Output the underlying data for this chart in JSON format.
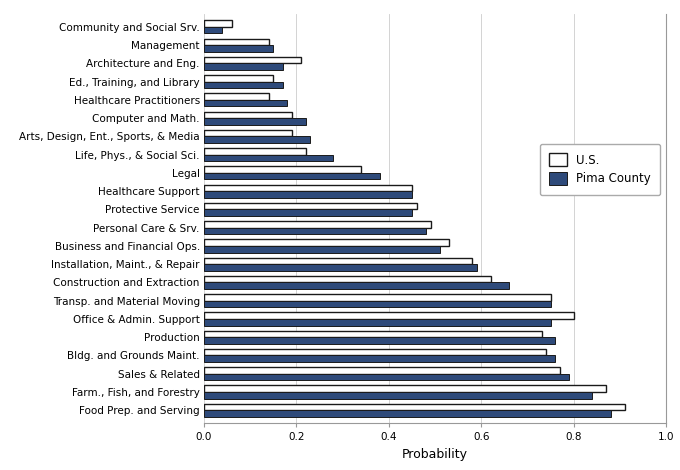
{
  "categories": [
    "Food Prep. and Serving",
    "Farm., Fish, and Forestry",
    "Sales & Related",
    "Bldg. and Grounds Maint.",
    "Production",
    "Office & Admin. Support",
    "Transp. and Material Moving",
    "Construction and Extraction",
    "Installation, Maint., & Repair",
    "Business and Financial Ops.",
    "Personal Care & Srv.",
    "Protective Service",
    "Healthcare Support",
    "Legal",
    "Life, Phys., & Social Sci.",
    "Arts, Design, Ent., Sports, & Media",
    "Computer and Math.",
    "Healthcare Practitioners",
    "Ed., Training, and Library",
    "Architecture and Eng.",
    "Management",
    "Community and Social Srv."
  ],
  "us_values": [
    0.91,
    0.87,
    0.77,
    0.74,
    0.73,
    0.8,
    0.75,
    0.62,
    0.58,
    0.53,
    0.49,
    0.46,
    0.45,
    0.34,
    0.22,
    0.19,
    0.19,
    0.14,
    0.15,
    0.21,
    0.14,
    0.06
  ],
  "pima_values": [
    0.88,
    0.84,
    0.79,
    0.76,
    0.76,
    0.75,
    0.75,
    0.66,
    0.59,
    0.51,
    0.48,
    0.45,
    0.45,
    0.38,
    0.28,
    0.23,
    0.22,
    0.18,
    0.17,
    0.17,
    0.15,
    0.04
  ],
  "us_color": "#ffffff",
  "us_edgecolor": "#1a1a1a",
  "pima_color": "#2e4a7a",
  "pima_edgecolor": "#1a1a1a",
  "xlabel": "Probability",
  "xlim": [
    0.0,
    1.0
  ],
  "xticks": [
    0.0,
    0.2,
    0.4,
    0.6,
    0.8,
    1.0
  ],
  "bar_height": 0.36,
  "legend_labels": [
    "U.S.",
    "Pima County"
  ],
  "figsize": [
    6.8,
    4.7
  ],
  "dpi": 100,
  "xlabel_fontsize": 9,
  "tick_fontsize": 7.5,
  "legend_fontsize": 8.5
}
